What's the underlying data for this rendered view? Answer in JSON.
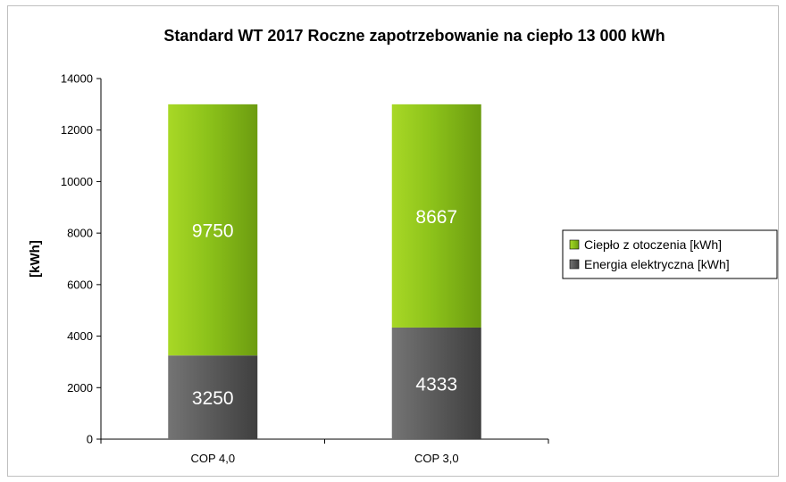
{
  "chart_data": {
    "type": "bar",
    "stacked": true,
    "title": "Standard WT 2017 Roczne zapotrzebowanie na ciepło 13 000 kWh",
    "xlabel": "",
    "ylabel": "[kWh]",
    "categories": [
      "COP 4,0",
      "COP 3,0"
    ],
    "ylim": [
      0,
      14000
    ],
    "yticks": [
      0,
      2000,
      4000,
      6000,
      8000,
      10000,
      12000,
      14000
    ],
    "grid": false,
    "legend_position": "right",
    "series": [
      {
        "name": "Energia elektryczna [kWh]",
        "values": [
          3250,
          4333
        ],
        "color": "#5a5a5a",
        "data_labels": [
          "3250",
          "4333"
        ]
      },
      {
        "name": "Ciepło z otoczenia [kWh]",
        "values": [
          9750,
          8667
        ],
        "color": "#8cc21a",
        "data_labels": [
          "9750",
          "8667"
        ]
      }
    ],
    "legend": [
      "Ciepło z otoczenia [kWh]",
      "Energia elektryczna [kWh]"
    ]
  }
}
